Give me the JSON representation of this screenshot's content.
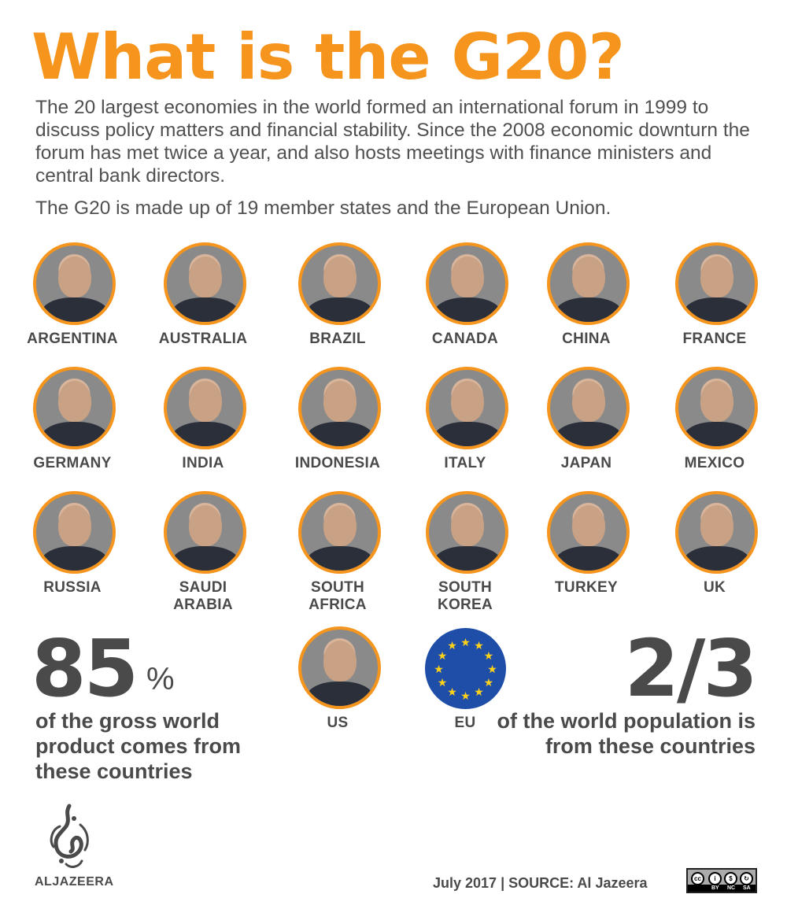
{
  "title": "What is the G20?",
  "intro": "The 20 largest economies in the world formed an international forum in 1999 to discuss policy matters and financial stability. Since the 2008 economic downturn the forum has met twice a year, and also hosts meetings with finance ministers and central bank directors.",
  "intro2": "The G20 is made up of 19 member states and the European Union.",
  "members": [
    {
      "label": "ARGENTINA"
    },
    {
      "label": "AUSTRALIA"
    },
    {
      "label": "BRAZIL"
    },
    {
      "label": "CANADA"
    },
    {
      "label": "CHINA"
    },
    {
      "label": "FRANCE"
    },
    {
      "label": "GERMANY"
    },
    {
      "label": "INDIA"
    },
    {
      "label": "INDONESIA"
    },
    {
      "label": "ITALY"
    },
    {
      "label": "JAPAN"
    },
    {
      "label": "MEXICO"
    },
    {
      "label": "RUSSIA"
    },
    {
      "label": "SAUDI\nARABIA"
    },
    {
      "label": "SOUTH\nAFRICA"
    },
    {
      "label": "SOUTH\nKOREA"
    },
    {
      "label": "TURKEY"
    },
    {
      "label": "UK"
    },
    {
      "label": "US"
    },
    {
      "label": "EU"
    }
  ],
  "stats": {
    "left_number": "85",
    "left_unit": "%",
    "left_text": "of the gross world product comes from these countries",
    "right_number": "2/3",
    "right_text": "of the world population is from these countries"
  },
  "logo_text": "ALJAZEERA",
  "footer": "July 2017  |  SOURCE: Al Jazeera",
  "license": {
    "tags": [
      "BY",
      "NC",
      "SA"
    ]
  },
  "colors": {
    "accent": "#f5951e",
    "text": "#4a4a4a",
    "eu_blue": "#1f4ea8",
    "eu_star": "#ffd21a"
  }
}
